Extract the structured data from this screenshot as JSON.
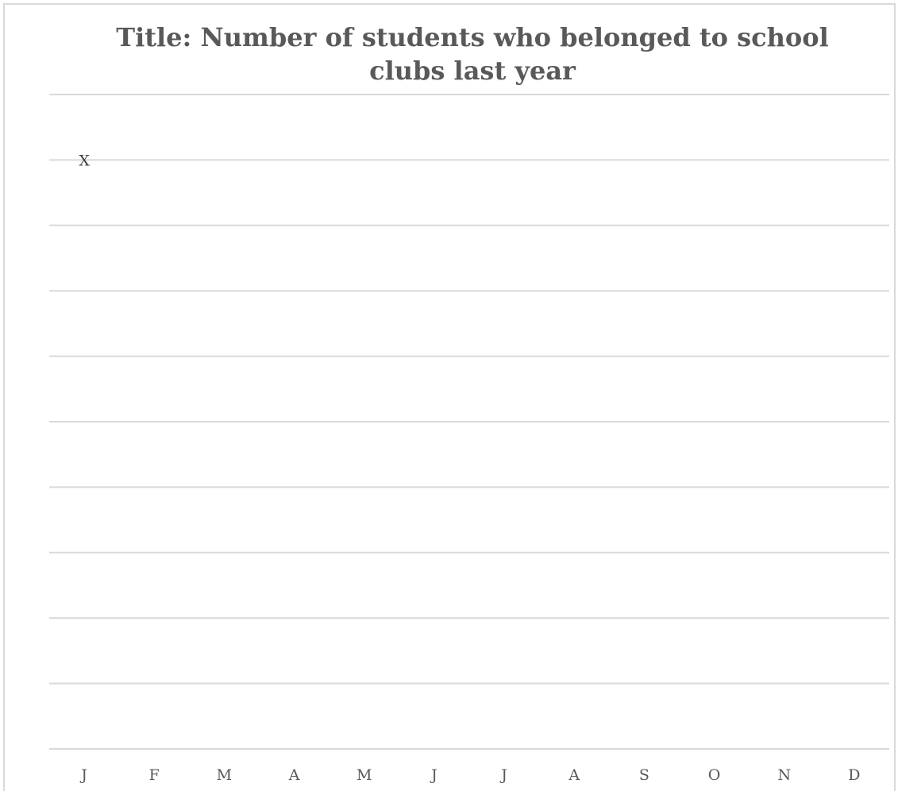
{
  "chart_data": {
    "type": "scatter",
    "title": "Title: Number of students who belonged to school clubs last year",
    "xlabel": "",
    "ylabel": "",
    "categories": [
      "J",
      "F",
      "M",
      "A",
      "M",
      "J",
      "J",
      "A",
      "S",
      "O",
      "N",
      "D"
    ],
    "gridline_count": 10,
    "grid": true,
    "legend": "none",
    "colors": {
      "title": "#595959",
      "gridline": "#d9d9d9",
      "label": "#595959",
      "marker": "#404040"
    },
    "series": [
      {
        "marker_symbol": "X",
        "points": [
          {
            "category_index": 0,
            "gridline_level": 9
          }
        ]
      }
    ]
  }
}
